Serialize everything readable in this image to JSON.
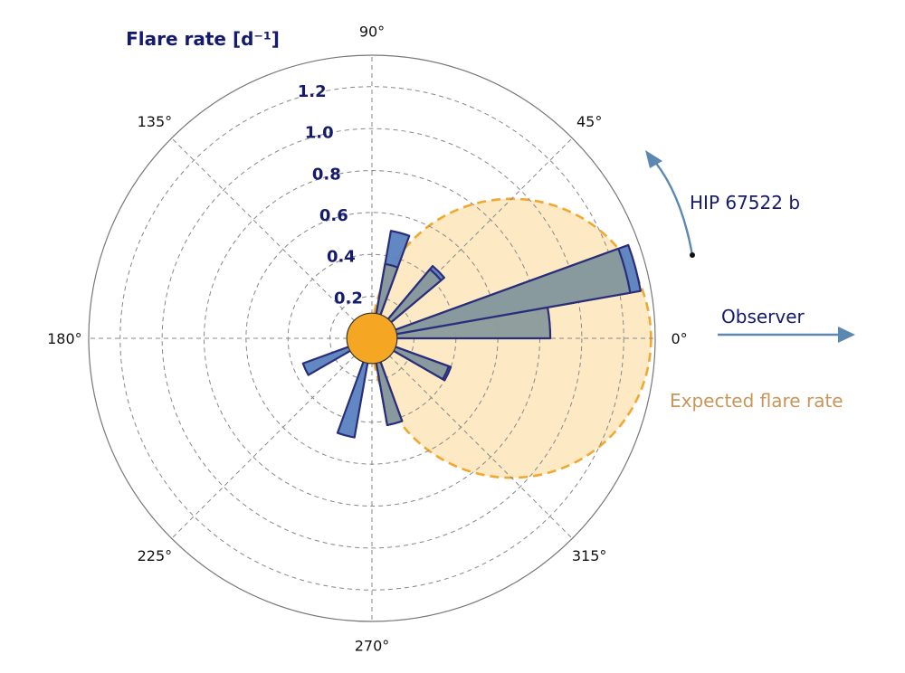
{
  "chart_data": {
    "type": "polar-bar",
    "title": "",
    "radial_axis": {
      "label": "Flare rate [d⁻¹]",
      "ticks": [
        0.2,
        0.4,
        0.6,
        0.8,
        1.0,
        1.2
      ],
      "tick_labels": [
        "0.2",
        "0.4",
        "0.6",
        "0.8",
        "1.0",
        "1.2"
      ],
      "range": [
        0,
        1.35
      ],
      "gridlines": "dashed"
    },
    "angular_axis": {
      "ticks_deg": [
        0,
        45,
        90,
        135,
        180,
        225,
        270,
        315
      ],
      "tick_labels": [
        "0°",
        "45°",
        "90°",
        "135°",
        "180°",
        "225°",
        "270°",
        "315°"
      ]
    },
    "bar_width_deg": 10,
    "series": [
      {
        "name": "",
        "color": "#5a82c0",
        "values": [
          {
            "angle_deg": 15,
            "rate": 1.3
          },
          {
            "angle_deg": 45,
            "rate": 0.45
          },
          {
            "angle_deg": 75,
            "rate": 0.52
          },
          {
            "angle_deg": 205,
            "rate": 0.35
          },
          {
            "angle_deg": 255,
            "rate": 0.48
          },
          {
            "angle_deg": 285,
            "rate": 0.42
          },
          {
            "angle_deg": 335,
            "rate": 0.4
          }
        ]
      },
      {
        "name": "",
        "color": "#8a9b9b",
        "values": [
          {
            "angle_deg": 5,
            "rate": 0.85
          },
          {
            "angle_deg": 15,
            "rate": 1.25
          },
          {
            "angle_deg": 45,
            "rate": 0.43
          },
          {
            "angle_deg": 75,
            "rate": 0.36
          },
          {
            "angle_deg": 285,
            "rate": 0.42
          },
          {
            "angle_deg": 335,
            "rate": 0.39
          }
        ]
      }
    ],
    "expected_flare_rate": {
      "label": "Expected flare rate",
      "shape": "circle (cardioid-like) through origin, diameter 1.33 along 0°",
      "diameter": 1.33,
      "fill": "#fde9c4",
      "edge": "#f0a830"
    },
    "star": {
      "radius_rate": 0.12,
      "color": "#f5a623"
    },
    "annotations": [
      {
        "text": "HIP 67522 b",
        "type": "curved-arrow",
        "color": "#5b88b0"
      },
      {
        "text": "Observer",
        "type": "arrow",
        "direction_deg": 0,
        "color": "#5b88b0"
      }
    ]
  },
  "colors": {
    "navy": "#141a6e",
    "orange_text": "#c8965a",
    "arrow": "#5b88b0"
  }
}
